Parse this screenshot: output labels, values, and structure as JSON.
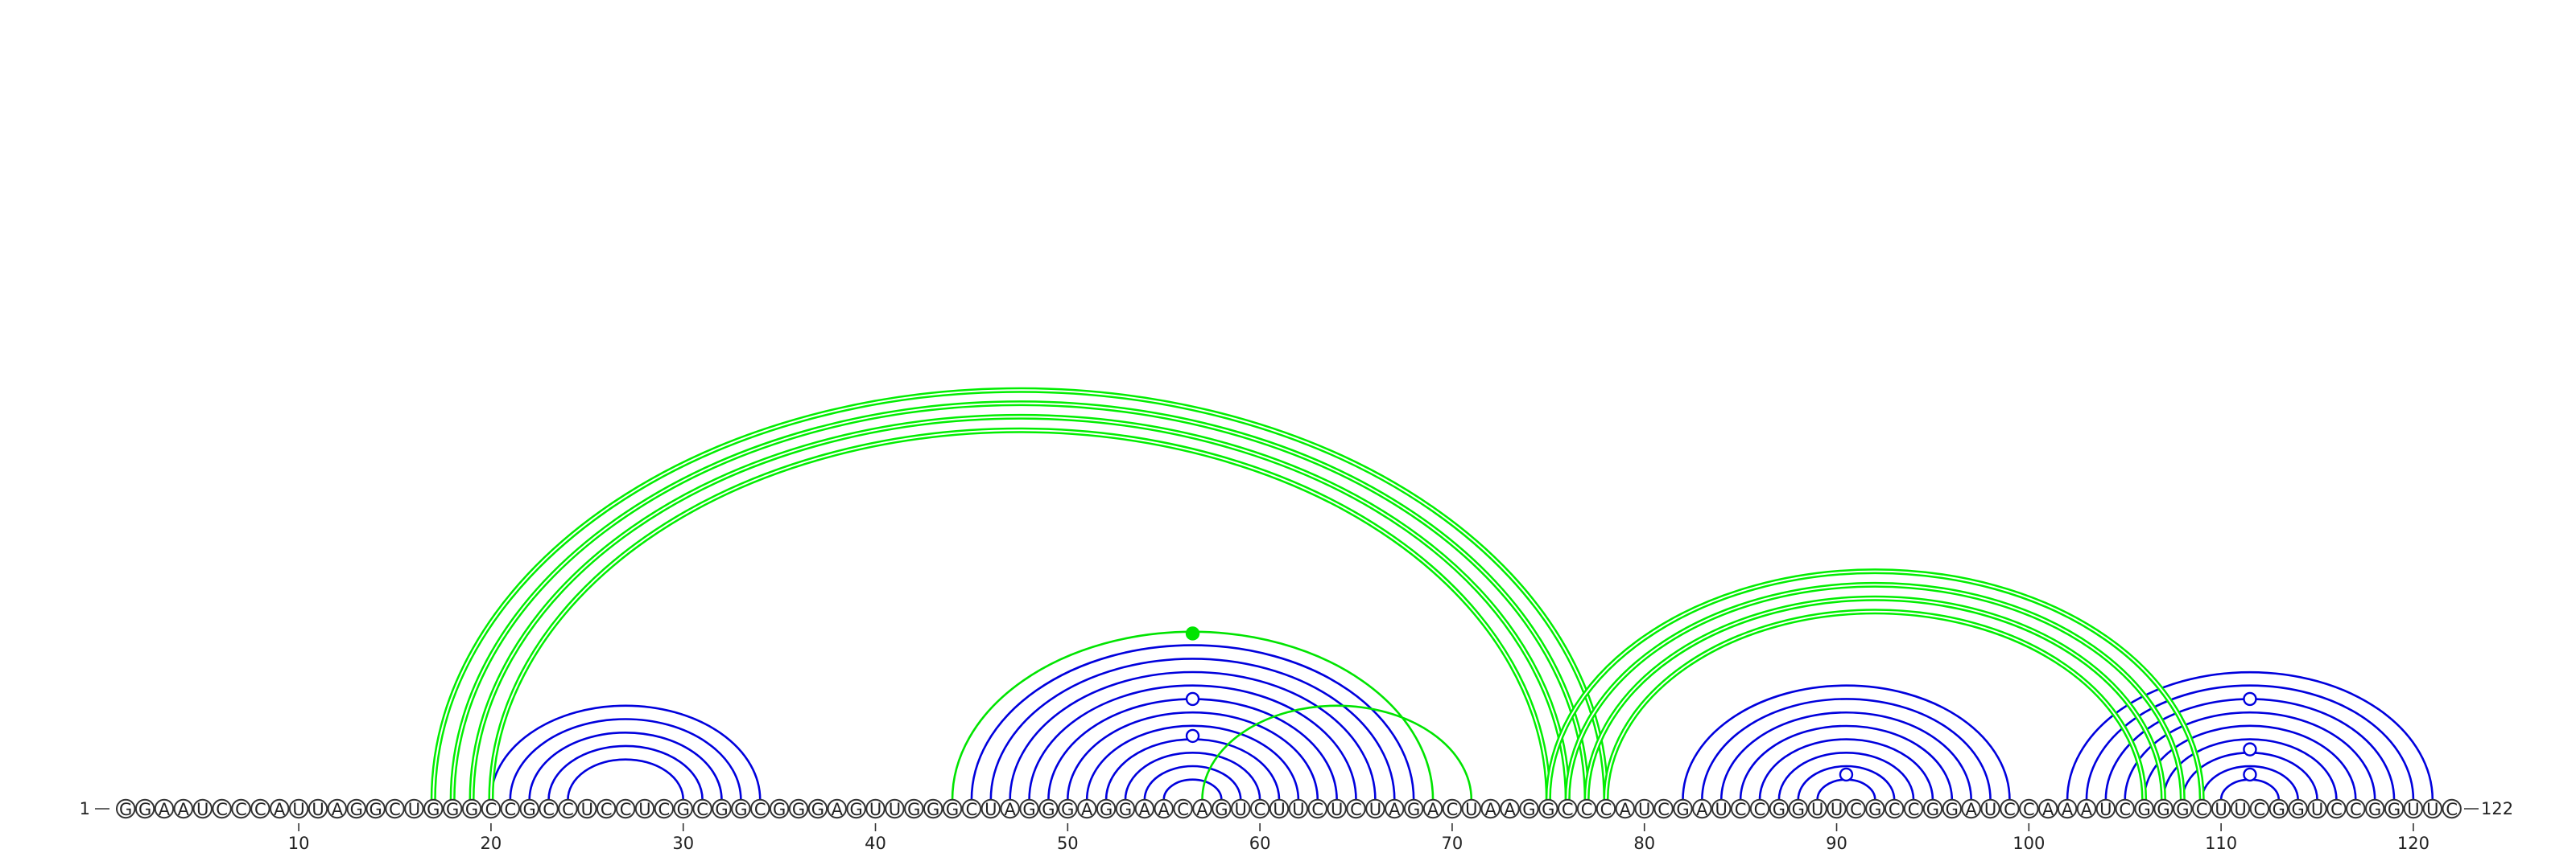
{
  "sequence": "GGAAUCCCAUUAGGCUGGGCCGCCUCCUCGCGGCGGGAGUUGGGCUAGGGAGGAACAGUCUUCUCUAGACUAAGGCCCAUCGAUCCGGUUCGCCGGAUCCAAAUCGGGCUUCGGUCCGGUUC",
  "start_label": "1",
  "end_label": "122",
  "ticks": [
    "10",
    "20",
    "30",
    "40",
    "50",
    "60",
    "70",
    "80",
    "90",
    "100",
    "110",
    "120"
  ],
  "colors": {
    "blue_arcs": "#0000dd",
    "green_arcs": "#00e400",
    "green_arc_bundles": "#00ee00"
  },
  "arc_groups": [
    {
      "color": "blue",
      "style": "single",
      "pairs": [
        [
          20,
          34
        ],
        [
          21,
          33
        ],
        [
          22,
          32
        ],
        [
          23,
          31
        ],
        [
          24,
          30
        ]
      ]
    },
    {
      "color": "blue",
      "style": "single",
      "pairs": [
        [
          45,
          68
        ],
        [
          46,
          67
        ],
        [
          47,
          66
        ],
        [
          48,
          65
        ],
        [
          49,
          64
        ],
        [
          50,
          63
        ],
        [
          51,
          62
        ],
        [
          52,
          61
        ],
        [
          53,
          60
        ],
        [
          54,
          59
        ],
        [
          55,
          58
        ]
      ]
    },
    {
      "color": "blue",
      "style": "single",
      "pairs": [
        [
          82,
          99
        ],
        [
          83,
          98
        ],
        [
          84,
          97
        ],
        [
          85,
          96
        ],
        [
          86,
          95
        ],
        [
          87,
          94
        ],
        [
          88,
          93
        ],
        [
          89,
          92
        ]
      ]
    },
    {
      "color": "blue",
      "style": "single",
      "pairs": [
        [
          102,
          121
        ],
        [
          103,
          120
        ],
        [
          104,
          119
        ],
        [
          105,
          118
        ],
        [
          106,
          117
        ],
        [
          107,
          116
        ],
        [
          108,
          115
        ],
        [
          109,
          114
        ],
        [
          110,
          113
        ]
      ]
    },
    {
      "color": "green",
      "style": "double",
      "pairs": [
        [
          17,
          78
        ],
        [
          18,
          77
        ],
        [
          19,
          76
        ],
        [
          20,
          75
        ]
      ]
    },
    {
      "color": "green",
      "style": "double",
      "pairs": [
        [
          75,
          109
        ],
        [
          76,
          108
        ],
        [
          77,
          107
        ],
        [
          78,
          106
        ]
      ]
    },
    {
      "color": "green",
      "style": "single",
      "pairs": [
        [
          44,
          69
        ],
        [
          57,
          71
        ]
      ]
    }
  ],
  "markers": [
    {
      "x_pos": 56.5,
      "level": 0.99,
      "type": "filled-green"
    },
    {
      "x_pos": 56.5,
      "level": 0.6,
      "type": "open-blue"
    },
    {
      "x_pos": 56.5,
      "level": 0.38,
      "type": "open-blue"
    },
    {
      "x_pos": 90.5,
      "level": 0.15,
      "type": "open-blue"
    },
    {
      "x_pos": 111.5,
      "level": 0.6,
      "type": "open-blue"
    },
    {
      "x_pos": 111.5,
      "level": 0.3,
      "type": "open-blue"
    },
    {
      "x_pos": 111.5,
      "level": 0.15,
      "type": "open-blue"
    }
  ]
}
